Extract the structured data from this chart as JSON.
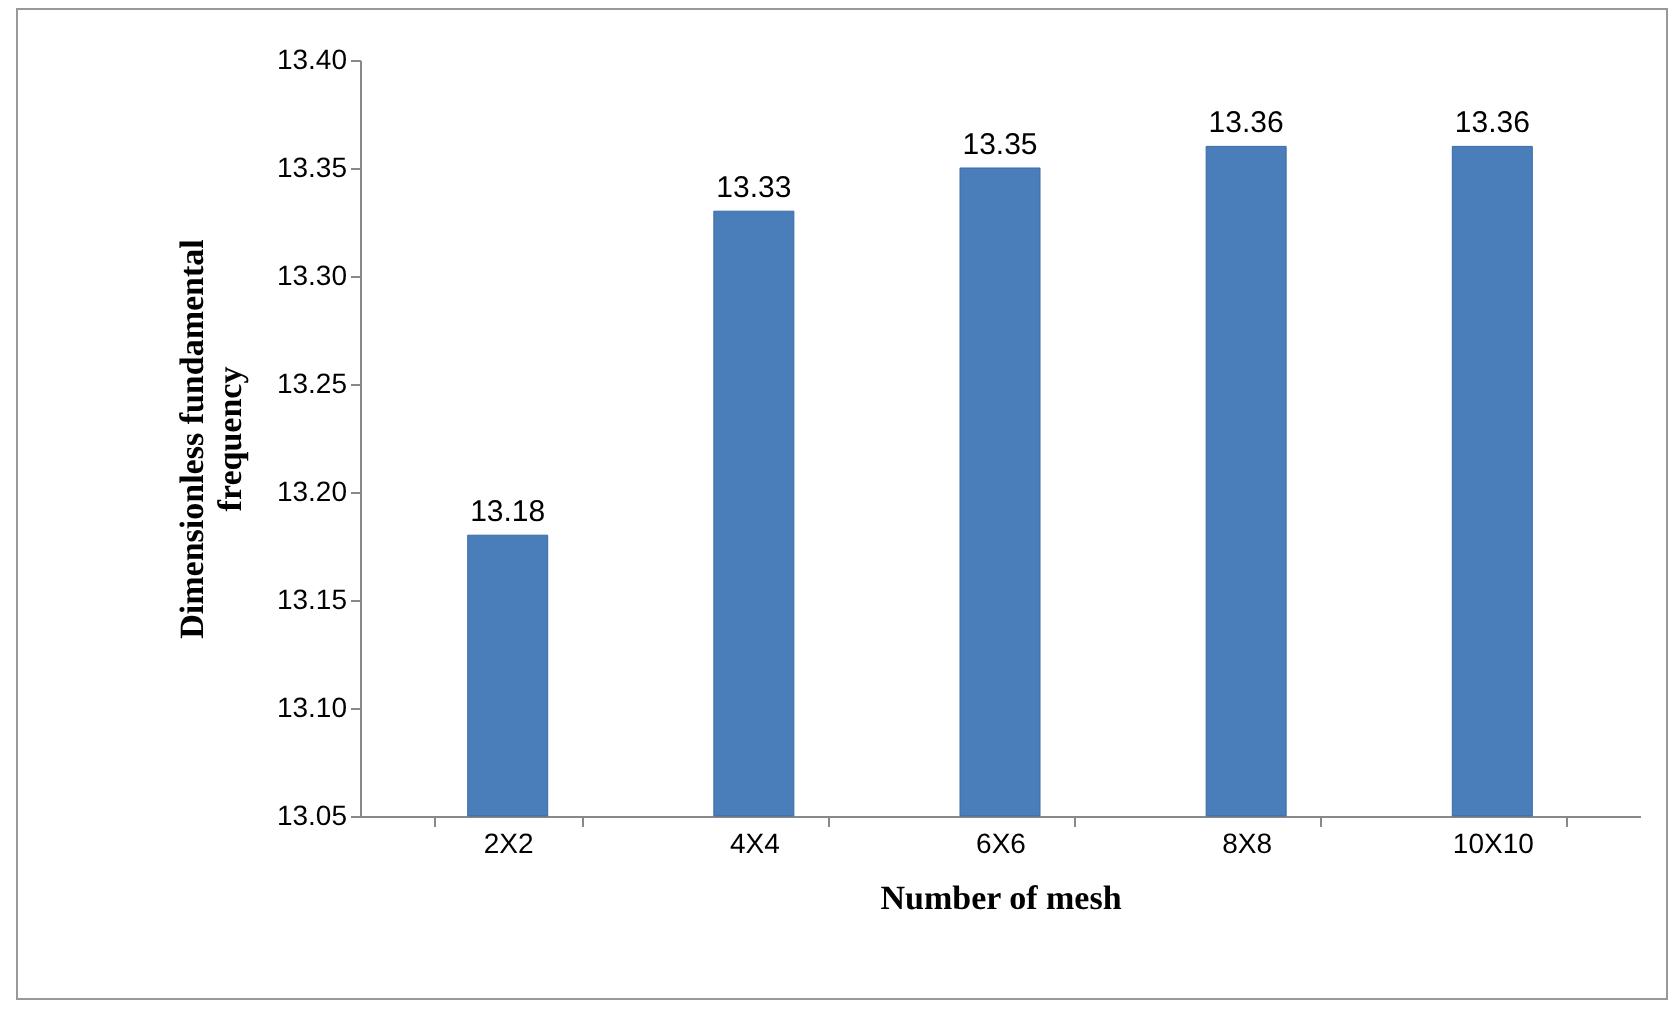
{
  "chart_data": {
    "type": "bar",
    "xlabel": "Number of mesh",
    "ylabel": "Dimensionless fundamental frequency",
    "categories": [
      "2X2",
      "4X4",
      "6X6",
      "8X8",
      "10X10"
    ],
    "values": [
      13.18,
      13.33,
      13.35,
      13.36,
      13.36
    ],
    "color": "#4a7ebb",
    "ylim": [
      13.05,
      13.4
    ],
    "yticks": [
      {
        "value": 13.05,
        "label": "13.05"
      },
      {
        "value": 13.1,
        "label": "13.10"
      },
      {
        "value": 13.15,
        "label": "13.15"
      },
      {
        "value": 13.2,
        "label": "13.20"
      },
      {
        "value": 13.25,
        "label": "13.25"
      },
      {
        "value": 13.3,
        "label": "13.30"
      },
      {
        "value": 13.35,
        "label": "13.35"
      },
      {
        "value": 13.4,
        "label": "13.40"
      }
    ],
    "data_labels": true
  }
}
